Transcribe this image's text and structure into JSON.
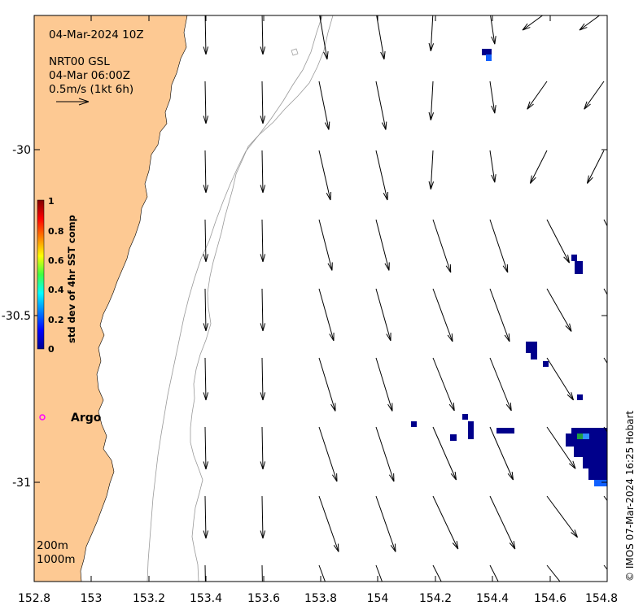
{
  "header": {
    "date_label": "04-Mar-2024 10Z",
    "product_line1": "NRT00 GSL",
    "product_line2": "04-Mar 06:00Z",
    "scale_label": "0.5m/s (1kt 6h)"
  },
  "axes": {
    "x_ticks": [
      "152.8",
      "153",
      "153.2",
      "153.4",
      "153.6",
      "153.8",
      "154",
      "154.2",
      "154.4",
      "154.6",
      "154.8"
    ],
    "y_ticks": [
      "-30",
      "-30.5",
      "-31"
    ]
  },
  "colorbar": {
    "label": "std dev of 4hr SST comp",
    "ticks": [
      "1",
      "0.8",
      "0.6",
      "0.4",
      "0.2",
      "0"
    ]
  },
  "legend": {
    "contour_200": "200m",
    "contour_1000": "1000m",
    "argo_label": "Argo"
  },
  "credit": "© IMOS 07-Mar-2024 16:25 Hobart",
  "colors": {
    "land": "#fdc993",
    "argo_marker": "#ff00ff",
    "sst_low": "#00008b",
    "contour": "#999999"
  }
}
